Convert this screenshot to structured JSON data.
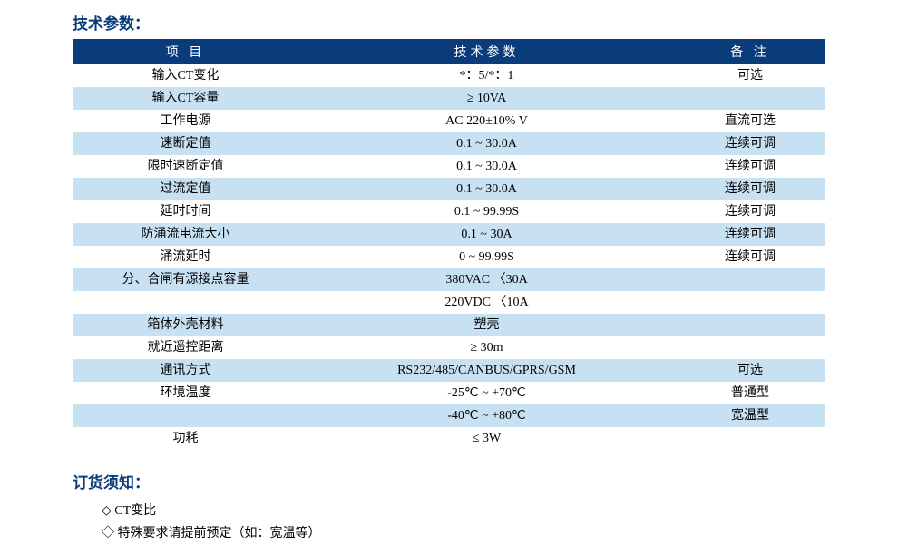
{
  "colors": {
    "heading_text": "#0a3b7a",
    "header_row_bg": "#0a3b7a",
    "header_row_text": "#ffffff",
    "row_even_bg": "#c7e0f2",
    "row_odd_bg": "#ffffff"
  },
  "headings": {
    "tech_params": "技术参数：",
    "ordering_notice": "订货须知："
  },
  "table": {
    "columns": [
      "项  目",
      "技术参数",
      "备  注"
    ],
    "rows": [
      {
        "item": "输入CT变化",
        "param": "*：5/*：1",
        "remark": "可选"
      },
      {
        "item": "输入CT容量",
        "param": "≥ 10VA",
        "remark": ""
      },
      {
        "item": "工作电源",
        "param": "AC 220±10% V",
        "remark": "直流可选"
      },
      {
        "item": "速断定值",
        "param": "0.1 ~ 30.0A",
        "remark": "连续可调"
      },
      {
        "item": "限时速断定值",
        "param": "0.1 ~ 30.0A",
        "remark": "连续可调"
      },
      {
        "item": "过流定值",
        "param": "0.1 ~ 30.0A",
        "remark": "连续可调"
      },
      {
        "item": "延时时间",
        "param": "0.1 ~ 99.99S",
        "remark": "连续可调"
      },
      {
        "item": "防涌流电流大小",
        "param": "0.1 ~ 30A",
        "remark": "连续可调"
      },
      {
        "item": "涌流延时",
        "param": "0 ~ 99.99S",
        "remark": "连续可调"
      },
      {
        "item": "分、合闸有源接点容量",
        "param": "380VAC 〈30A",
        "remark": ""
      },
      {
        "item": "",
        "param": "220VDC 〈10A",
        "remark": ""
      },
      {
        "item": "箱体外壳材料",
        "param": "塑壳",
        "remark": ""
      },
      {
        "item": "就近遥控距离",
        "param": "≥ 30m",
        "remark": ""
      },
      {
        "item": "通讯方式",
        "param": "RS232/485/CANBUS/GPRS/GSM",
        "remark": "可选"
      },
      {
        "item": "环境温度",
        "param": "-25℃ ~ +70℃",
        "remark": "普通型"
      },
      {
        "item": "",
        "param": "-40℃ ~ +80℃",
        "remark": "宽温型"
      },
      {
        "item": "功耗",
        "param": "≤ 3W",
        "remark": ""
      }
    ]
  },
  "ordering_items": [
    "CT变比",
    "特殊要求请提前预定（如：宽温等）"
  ]
}
